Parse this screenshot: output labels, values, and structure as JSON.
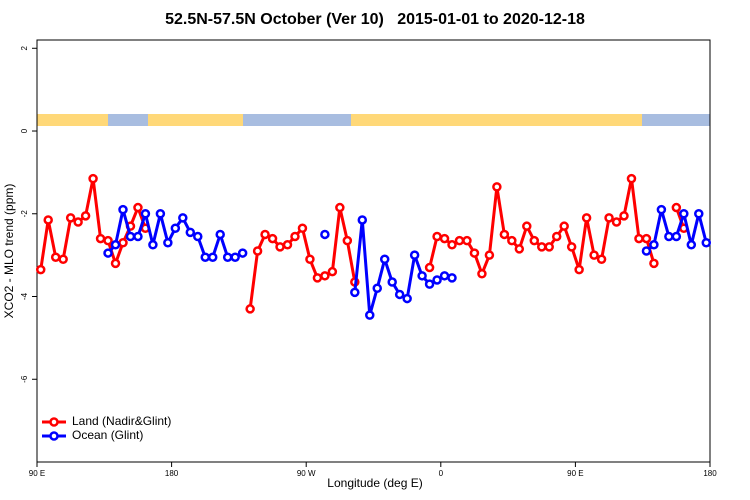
{
  "chart_data": {
    "type": "line",
    "title": "52.5N-57.5N October (Ver 10)   2015-01-01 to 2020-12-18",
    "x_label": "Longitude (deg E)",
    "y_label": "XCO2 - MLO trend (ppm)",
    "xlim": [
      90,
      540
    ],
    "ylim": [
      -8,
      2.2
    ],
    "xticks": [
      {
        "value": 90,
        "label": "90 E"
      },
      {
        "value": 180,
        "label": "180"
      },
      {
        "value": 270,
        "label": "90 W"
      },
      {
        "value": 360,
        "label": "0"
      },
      {
        "value": 450,
        "label": "90 E"
      },
      {
        "value": 540,
        "label": "180"
      }
    ],
    "yticks": [
      2,
      0,
      -2,
      -4,
      -6
    ],
    "legend": "bottom left",
    "x": [
      92.5,
      97.5,
      102.5,
      107.5,
      112.5,
      117.5,
      122.5,
      127.5,
      132.5,
      137.5,
      142.5,
      147.5,
      152.5,
      157.5,
      162.5,
      167.5,
      172.5,
      177.5,
      182.5,
      187.5,
      192.5,
      197.5,
      202.5,
      207.5,
      212.5,
      217.5,
      222.5,
      227.5,
      232.5,
      237.5,
      242.5,
      247.5,
      252.5,
      257.5,
      262.5,
      267.5,
      272.5,
      277.5,
      282.5,
      287.5,
      292.5,
      297.5,
      302.5,
      307.5,
      312.5,
      317.5,
      322.5,
      327.5,
      332.5,
      337.5,
      342.5,
      347.5,
      352.5,
      357.5,
      362.5,
      367.5,
      372.5,
      377.5,
      382.5,
      387.5,
      392.5,
      397.5,
      402.5,
      407.5,
      412.5,
      417.5,
      422.5,
      427.5,
      432.5,
      437.5,
      442.5,
      447.5,
      452.5,
      457.5,
      462.5,
      467.5,
      472.5,
      477.5,
      482.5,
      487.5,
      492.5,
      497.5,
      502.5,
      507.5,
      512.5,
      517.5,
      522.5,
      527.5,
      532.5,
      537.5
    ],
    "series": [
      {
        "name": "Land (Nadir&Glint)",
        "color": "#ff0000",
        "values": [
          -3.35,
          -2.15,
          -3.05,
          -3.1,
          -2.1,
          -2.2,
          -2.05,
          -1.15,
          -2.6,
          -2.65,
          -3.2,
          -2.7,
          -2.3,
          -1.85,
          -2.35,
          null,
          null,
          null,
          null,
          null,
          null,
          null,
          null,
          null,
          null,
          null,
          null,
          null,
          -4.3,
          -2.9,
          -2.5,
          -2.6,
          -2.8,
          -2.75,
          -2.55,
          -2.35,
          -3.1,
          -3.55,
          -3.5,
          -3.4,
          -1.85,
          -2.65,
          -3.65,
          null,
          null,
          null,
          null,
          null,
          null,
          null,
          null,
          null,
          -3.3,
          -2.55,
          -2.6,
          -2.75,
          -2.65,
          -2.65,
          -2.95,
          -3.45,
          -3.0,
          -1.35,
          -2.5,
          -2.65,
          -2.85,
          -2.3,
          -2.65,
          -2.8,
          -2.8,
          -2.55,
          -2.3,
          -2.8,
          -3.35,
          -2.1,
          -3.0,
          -3.1,
          -2.1,
          -2.2,
          -2.05,
          -1.15,
          -2.6,
          -2.6,
          -3.2,
          null,
          null,
          -1.85,
          -2.35,
          null,
          null,
          null
        ]
      },
      {
        "name": "Ocean (Glint)",
        "color": "#0000ff",
        "values": [
          null,
          null,
          null,
          null,
          null,
          null,
          null,
          null,
          null,
          -2.95,
          -2.75,
          -1.9,
          -2.55,
          -2.55,
          -2.0,
          -2.75,
          -2.0,
          -2.7,
          -2.35,
          -2.1,
          -2.45,
          -2.55,
          -3.05,
          -3.05,
          -2.5,
          -3.05,
          -3.05,
          -2.95,
          null,
          null,
          null,
          null,
          null,
          null,
          null,
          null,
          null,
          null,
          -2.5,
          null,
          null,
          null,
          -3.9,
          -2.15,
          -4.45,
          -3.8,
          -3.1,
          -3.65,
          -3.95,
          -4.05,
          -3.0,
          -3.5,
          -3.7,
          -3.6,
          -3.5,
          -3.55,
          null,
          null,
          null,
          null,
          null,
          null,
          null,
          null,
          null,
          null,
          null,
          null,
          null,
          null,
          null,
          null,
          null,
          null,
          null,
          null,
          null,
          null,
          null,
          null,
          null,
          -2.9,
          -2.75,
          -1.9,
          -2.55,
          -2.55,
          -2.0,
          -2.75,
          -2.0,
          -2.7
        ]
      }
    ]
  }
}
